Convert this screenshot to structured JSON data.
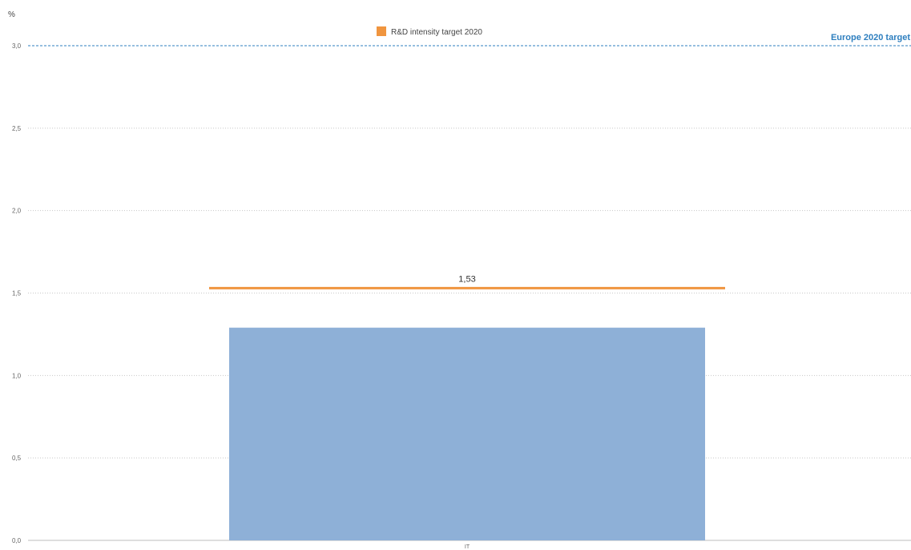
{
  "chart_data": {
    "type": "bar",
    "ylabel": "%",
    "ylim": [
      0,
      3
    ],
    "yticks": [
      "0,0",
      "0,5",
      "1,0",
      "1,5",
      "2,0",
      "2,5",
      "3,0"
    ],
    "categories": [
      "IT"
    ],
    "values": [
      1.29
    ],
    "grid": true,
    "legend_position": "top-center",
    "series": [
      {
        "name": "R&D intensity target 2020",
        "type": "target-line",
        "values": [
          1.53
        ],
        "data_label": "1,53",
        "color": "#f0953f"
      }
    ],
    "reference_line": {
      "label": "Europe 2020 target",
      "value": 3.0,
      "color": "#2e7fbf"
    },
    "colors": {
      "bar": "#8eb0d7",
      "target_line": "#f0953f",
      "reference_line": "#2e7fbf",
      "grid": "#c8c8c8",
      "baseline": "#bdbdbd"
    }
  }
}
